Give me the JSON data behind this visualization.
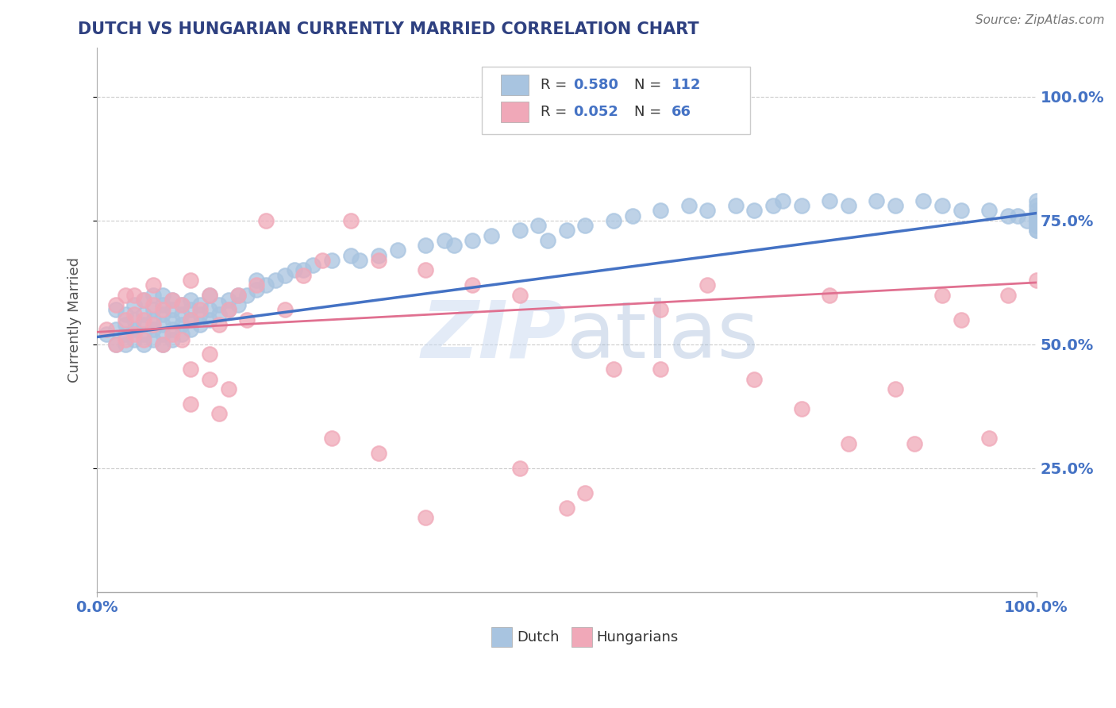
{
  "title": "DUTCH VS HUNGARIAN CURRENTLY MARRIED CORRELATION CHART",
  "source": "Source: ZipAtlas.com",
  "ylabel": "Currently Married",
  "blue_R": 0.58,
  "blue_N": 112,
  "pink_R": 0.052,
  "pink_N": 66,
  "blue_color": "#a8c4e0",
  "pink_color": "#f0a8b8",
  "blue_line_color": "#4472c4",
  "pink_line_color": "#e07090",
  "legend_label_blue": "Dutch",
  "legend_label_pink": "Hungarians",
  "watermark": "ZIPAtlas",
  "title_color": "#2e4080",
  "axis_label_color": "#4472c4",
  "blue_scatter_x": [
    0.01,
    0.02,
    0.02,
    0.02,
    0.03,
    0.03,
    0.03,
    0.03,
    0.04,
    0.04,
    0.04,
    0.04,
    0.05,
    0.05,
    0.05,
    0.05,
    0.05,
    0.06,
    0.06,
    0.06,
    0.06,
    0.06,
    0.07,
    0.07,
    0.07,
    0.07,
    0.07,
    0.07,
    0.08,
    0.08,
    0.08,
    0.08,
    0.08,
    0.09,
    0.09,
    0.09,
    0.09,
    0.1,
    0.1,
    0.1,
    0.1,
    0.11,
    0.11,
    0.11,
    0.12,
    0.12,
    0.12,
    0.13,
    0.13,
    0.14,
    0.14,
    0.15,
    0.15,
    0.16,
    0.17,
    0.17,
    0.18,
    0.19,
    0.2,
    0.21,
    0.22,
    0.23,
    0.25,
    0.27,
    0.28,
    0.3,
    0.32,
    0.35,
    0.37,
    0.38,
    0.4,
    0.42,
    0.45,
    0.47,
    0.48,
    0.5,
    0.52,
    0.55,
    0.57,
    0.6,
    0.63,
    0.65,
    0.68,
    0.7,
    0.72,
    0.73,
    0.75,
    0.78,
    0.8,
    0.83,
    0.85,
    0.88,
    0.9,
    0.92,
    0.95,
    0.97,
    0.98,
    0.99,
    1.0,
    1.0,
    1.0,
    1.0,
    1.0,
    1.0,
    1.0,
    1.0,
    1.0,
    1.0,
    1.0,
    1.0,
    1.0,
    1.0
  ],
  "blue_scatter_y": [
    0.52,
    0.5,
    0.53,
    0.57,
    0.5,
    0.52,
    0.54,
    0.56,
    0.51,
    0.53,
    0.55,
    0.58,
    0.5,
    0.52,
    0.54,
    0.56,
    0.59,
    0.51,
    0.53,
    0.55,
    0.57,
    0.6,
    0.5,
    0.52,
    0.54,
    0.56,
    0.58,
    0.6,
    0.51,
    0.53,
    0.55,
    0.57,
    0.59,
    0.52,
    0.54,
    0.56,
    0.58,
    0.53,
    0.55,
    0.57,
    0.59,
    0.54,
    0.56,
    0.58,
    0.55,
    0.57,
    0.6,
    0.56,
    0.58,
    0.57,
    0.59,
    0.58,
    0.6,
    0.6,
    0.61,
    0.63,
    0.62,
    0.63,
    0.64,
    0.65,
    0.65,
    0.66,
    0.67,
    0.68,
    0.67,
    0.68,
    0.69,
    0.7,
    0.71,
    0.7,
    0.71,
    0.72,
    0.73,
    0.74,
    0.71,
    0.73,
    0.74,
    0.75,
    0.76,
    0.77,
    0.78,
    0.77,
    0.78,
    0.77,
    0.78,
    0.79,
    0.78,
    0.79,
    0.78,
    0.79,
    0.78,
    0.79,
    0.78,
    0.77,
    0.77,
    0.76,
    0.76,
    0.75,
    0.75,
    0.76,
    0.77,
    0.78,
    0.79,
    0.75,
    0.76,
    0.75,
    0.74,
    0.73,
    0.73,
    0.74,
    0.75,
    0.76
  ],
  "pink_scatter_x": [
    0.01,
    0.02,
    0.02,
    0.03,
    0.03,
    0.03,
    0.04,
    0.04,
    0.04,
    0.05,
    0.05,
    0.05,
    0.06,
    0.06,
    0.06,
    0.07,
    0.07,
    0.08,
    0.08,
    0.09,
    0.09,
    0.1,
    0.1,
    0.11,
    0.12,
    0.12,
    0.13,
    0.14,
    0.15,
    0.16,
    0.17,
    0.18,
    0.2,
    0.22,
    0.24,
    0.27,
    0.3,
    0.35,
    0.4,
    0.45,
    0.5,
    0.52,
    0.55,
    0.6,
    0.65,
    0.7,
    0.75,
    0.78,
    0.8,
    0.85,
    0.87,
    0.9,
    0.92,
    0.95,
    0.97,
    1.0,
    0.1,
    0.1,
    0.12,
    0.13,
    0.14,
    0.25,
    0.3,
    0.35,
    0.45,
    0.6
  ],
  "pink_scatter_y": [
    0.53,
    0.5,
    0.58,
    0.51,
    0.55,
    0.6,
    0.52,
    0.56,
    0.6,
    0.51,
    0.55,
    0.59,
    0.54,
    0.58,
    0.62,
    0.5,
    0.57,
    0.52,
    0.59,
    0.51,
    0.58,
    0.55,
    0.63,
    0.57,
    0.48,
    0.6,
    0.54,
    0.57,
    0.6,
    0.55,
    0.62,
    0.75,
    0.57,
    0.64,
    0.67,
    0.75,
    0.67,
    0.65,
    0.62,
    0.6,
    0.17,
    0.2,
    0.45,
    0.57,
    0.62,
    0.43,
    0.37,
    0.6,
    0.3,
    0.41,
    0.3,
    0.6,
    0.55,
    0.31,
    0.6,
    0.63,
    0.38,
    0.45,
    0.43,
    0.36,
    0.41,
    0.31,
    0.28,
    0.15,
    0.25,
    0.45
  ],
  "blue_trend_x0": 0.0,
  "blue_trend_y0": 0.515,
  "blue_trend_x1": 1.0,
  "blue_trend_y1": 0.765,
  "pink_trend_x0": 0.0,
  "pink_trend_y0": 0.525,
  "pink_trend_x1": 1.0,
  "pink_trend_y1": 0.625,
  "ylim_min": 0.0,
  "ylim_max": 1.1,
  "xlim_min": 0.0,
  "xlim_max": 1.0
}
